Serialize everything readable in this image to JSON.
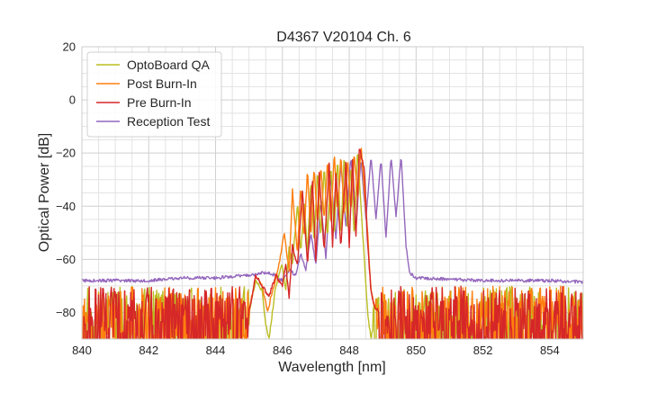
{
  "chart_data": {
    "type": "line",
    "title": "D4367 V20104 Ch. 6",
    "xlabel": "Wavelength [nm]",
    "ylabel": "Optical Power [dB]",
    "xlim": [
      840,
      855
    ],
    "ylim": [
      -90,
      20
    ],
    "xticks": [
      "840",
      "842",
      "844",
      "846",
      "848",
      "850",
      "852",
      "854"
    ],
    "yticks": [
      "20",
      "0",
      "−20",
      "−40",
      "−60",
      "−80"
    ],
    "grid": true,
    "legend_position": "top-left",
    "series": [
      {
        "name": "OptoBoard QA",
        "color": "#bcbd22",
        "noise_floor": -80,
        "x": [
          840,
          845.0,
          845.2,
          845.4,
          845.5,
          845.6,
          845.8,
          846.0,
          846.1,
          846.2,
          846.3,
          846.45,
          846.55,
          846.65,
          846.75,
          846.85,
          846.95,
          847.05,
          847.15,
          847.25,
          847.35,
          847.45,
          847.55,
          847.65,
          847.75,
          847.85,
          847.95,
          848.05,
          848.15,
          848.25,
          848.35,
          848.45,
          848.55,
          848.65,
          848.8,
          849.0
        ],
        "y": [
          -80,
          -80,
          -68,
          -72,
          -85,
          -90,
          -70,
          -62,
          -72,
          -55,
          -62,
          -39,
          -58,
          -38,
          -58,
          -30,
          -54,
          -26,
          -52,
          -24,
          -52,
          -24,
          -52,
          -21,
          -52,
          -20,
          -50,
          -24,
          -52,
          -18,
          -40,
          -60,
          -80,
          -90,
          -80,
          -80
        ]
      },
      {
        "name": "Post Burn-In",
        "color": "#ff7f0e",
        "noise_floor": -80,
        "x": [
          840,
          845.0,
          845.2,
          845.4,
          845.55,
          845.7,
          845.9,
          846.05,
          846.2,
          846.3,
          846.45,
          846.55,
          846.65,
          846.75,
          846.85,
          846.95,
          847.05,
          847.15,
          847.25,
          847.35,
          847.45,
          847.55,
          847.65,
          847.75,
          847.85,
          847.95,
          848.05,
          848.15,
          848.25,
          848.35,
          848.45,
          848.55,
          848.65,
          848.8,
          849.0
        ],
        "y": [
          -80,
          -80,
          -66,
          -70,
          -80,
          -72,
          -62,
          -50,
          -64,
          -34,
          -58,
          -32,
          -52,
          -26,
          -52,
          -25,
          -48,
          -25,
          -46,
          -22,
          -48,
          -20,
          -42,
          -21,
          -44,
          -22,
          -42,
          -20,
          -38,
          -17,
          -34,
          -50,
          -72,
          -80,
          -80
        ]
      },
      {
        "name": "Pre Burn-In",
        "color": "#d62728",
        "noise_floor": -80,
        "x": [
          840,
          845.0,
          845.2,
          845.4,
          845.6,
          845.8,
          846.0,
          846.1,
          846.2,
          846.3,
          846.45,
          846.6,
          846.75,
          846.9,
          847.0,
          847.1,
          847.25,
          847.4,
          847.5,
          847.6,
          847.75,
          847.9,
          848.0,
          848.1,
          848.2,
          848.3,
          848.45,
          848.55,
          848.65,
          848.75,
          848.9,
          849.0
        ],
        "y": [
          -80,
          -80,
          -66,
          -70,
          -74,
          -66,
          -70,
          -62,
          -74,
          -55,
          -62,
          -34,
          -62,
          -30,
          -60,
          -28,
          -57,
          -24,
          -55,
          -28,
          -55,
          -24,
          -55,
          -22,
          -52,
          -18,
          -26,
          -54,
          -72,
          -78,
          -80,
          -80
        ]
      },
      {
        "name": "Reception Test",
        "color": "#9467bd",
        "noise_floor": null,
        "x": [
          840,
          841,
          842,
          843,
          844,
          845.0,
          845.5,
          845.8,
          846.0,
          846.2,
          846.4,
          846.55,
          846.7,
          846.85,
          847.0,
          847.15,
          847.3,
          847.45,
          847.6,
          847.75,
          847.9,
          848.05,
          848.2,
          848.35,
          848.5,
          848.65,
          848.8,
          848.95,
          849.1,
          849.25,
          849.4,
          849.55,
          849.7,
          849.8,
          850.0,
          851,
          852,
          853,
          854,
          855
        ],
        "y": [
          -68,
          -68,
          -68,
          -67,
          -67,
          -66,
          -65,
          -66,
          -68,
          -64,
          -66,
          -58,
          -64,
          -50,
          -62,
          -38,
          -60,
          -28,
          -52,
          -24,
          -48,
          -21,
          -48,
          -22,
          -45,
          -21,
          -45,
          -22,
          -52,
          -21,
          -44,
          -21,
          -55,
          -65,
          -67,
          -67.5,
          -68,
          -68,
          -68,
          -68.5
        ]
      }
    ]
  }
}
